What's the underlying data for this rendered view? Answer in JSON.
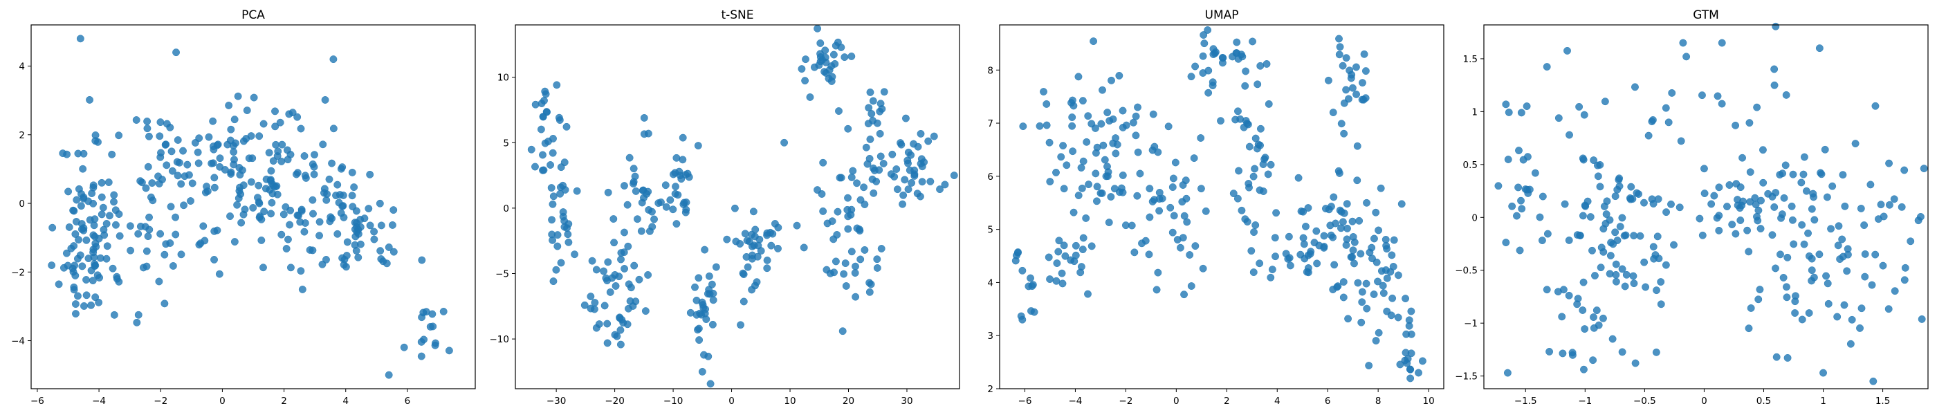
{
  "chart_data": [
    {
      "type": "scatter",
      "title": "PCA",
      "xlim": [
        -6.2,
        8.2
      ],
      "ylim": [
        -5.4,
        5.2
      ],
      "xticks": [
        -6,
        -4,
        -2,
        0,
        2,
        4,
        6
      ],
      "yticks": [
        -4,
        -2,
        0,
        2,
        4
      ],
      "color": "#1f77b4",
      "seed": 11,
      "clusters": [
        {
          "cx": -4.4,
          "cy": -0.8,
          "sx": 0.45,
          "sy": 1.4,
          "n": 90
        },
        {
          "cx": -1.5,
          "cy": 0.9,
          "sx": 0.9,
          "sy": 1.0,
          "n": 60
        },
        {
          "cx": 1.0,
          "cy": 0.9,
          "sx": 1.0,
          "sy": 1.2,
          "n": 90
        },
        {
          "cx": 3.2,
          "cy": 0.2,
          "sx": 0.9,
          "sy": 0.9,
          "n": 70
        },
        {
          "cx": 4.8,
          "cy": -1.2,
          "sx": 0.6,
          "sy": 0.6,
          "n": 30
        },
        {
          "cx": 6.8,
          "cy": -3.8,
          "sx": 0.4,
          "sy": 0.5,
          "n": 14
        },
        {
          "cx": -2.8,
          "cy": -1.2,
          "sx": 1.2,
          "sy": 1.0,
          "n": 30
        }
      ],
      "extra": [
        [
          -4.6,
          4.8
        ],
        [
          5.4,
          -5.0
        ],
        [
          -1.5,
          4.4
        ],
        [
          3.6,
          4.2
        ]
      ]
    },
    {
      "type": "scatter",
      "title": "t-SNE",
      "xlim": [
        -37.0,
        39.0
      ],
      "ylim": [
        -13.8,
        14.0
      ],
      "xticks": [
        -30,
        -20,
        -10,
        0,
        10,
        20,
        30
      ],
      "yticks": [
        -10,
        -5,
        0,
        5,
        10
      ],
      "color": "#1f77b4",
      "seed": 23,
      "clusters": [
        {
          "cx": -31.0,
          "cy": 5.0,
          "sx": 1.2,
          "sy": 2.0,
          "n": 25
        },
        {
          "cx": -29.0,
          "cy": -1.0,
          "sx": 1.4,
          "sy": 1.8,
          "n": 25
        },
        {
          "cx": -21.0,
          "cy": -6.5,
          "sx": 2.5,
          "sy": 2.5,
          "n": 45
        },
        {
          "cx": -16.0,
          "cy": 0.5,
          "sx": 2.0,
          "sy": 2.5,
          "n": 30
        },
        {
          "cx": -9.0,
          "cy": 1.5,
          "sx": 1.5,
          "sy": 2.2,
          "n": 25
        },
        {
          "cx": -4.5,
          "cy": -8.5,
          "sx": 1.0,
          "sy": 2.2,
          "n": 30
        },
        {
          "cx": 3.0,
          "cy": -3.0,
          "sx": 3.0,
          "sy": 2.0,
          "n": 40
        },
        {
          "cx": 16.0,
          "cy": 11.0,
          "sx": 2.0,
          "sy": 1.3,
          "n": 30
        },
        {
          "cx": 20.0,
          "cy": -1.0,
          "sx": 3.0,
          "sy": 3.5,
          "n": 55
        },
        {
          "cx": 31.0,
          "cy": 3.0,
          "sx": 3.0,
          "sy": 1.4,
          "n": 40
        },
        {
          "cx": 24.0,
          "cy": 7.0,
          "sx": 2.0,
          "sy": 1.2,
          "n": 15
        }
      ],
      "extra": [
        [
          -5.0,
          -12.5
        ],
        [
          -32.5,
          8.0
        ],
        [
          9.0,
          5.0
        ]
      ]
    },
    {
      "type": "scatter",
      "title": "UMAP",
      "xlim": [
        -7.0,
        10.6
      ],
      "ylim": [
        2.0,
        8.85
      ],
      "xticks": [
        -6,
        -4,
        -2,
        0,
        2,
        4,
        6,
        8,
        10
      ],
      "yticks": [
        2,
        3,
        4,
        5,
        6,
        7,
        8
      ],
      "color": "#1f77b4",
      "seed": 37,
      "clusters": [
        {
          "cx": -6.0,
          "cy": 3.9,
          "sx": 0.25,
          "sy": 0.35,
          "n": 12
        },
        {
          "cx": -4.2,
          "cy": 4.3,
          "sx": 0.4,
          "sy": 0.3,
          "n": 18
        },
        {
          "cx": -3.0,
          "cy": 6.6,
          "sx": 1.3,
          "sy": 0.8,
          "n": 80
        },
        {
          "cx": -0.5,
          "cy": 5.3,
          "sx": 0.7,
          "sy": 0.8,
          "n": 40
        },
        {
          "cx": 1.5,
          "cy": 8.2,
          "sx": 0.6,
          "sy": 0.3,
          "n": 25
        },
        {
          "cx": 3.0,
          "cy": 6.6,
          "sx": 0.4,
          "sy": 1.1,
          "n": 40
        },
        {
          "cx": 4.5,
          "cy": 4.9,
          "sx": 1.0,
          "sy": 0.5,
          "n": 25
        },
        {
          "cx": 6.8,
          "cy": 5.0,
          "sx": 1.0,
          "sy": 0.6,
          "n": 60
        },
        {
          "cx": 6.8,
          "cy": 7.6,
          "sx": 0.4,
          "sy": 0.5,
          "n": 25
        },
        {
          "cx": 8.2,
          "cy": 3.9,
          "sx": 0.4,
          "sy": 0.5,
          "n": 25
        },
        {
          "cx": 9.3,
          "cy": 2.8,
          "sx": 0.2,
          "sy": 0.3,
          "n": 15
        }
      ],
      "extra": [
        [
          9.6,
          2.3
        ],
        [
          -6.1,
          3.3
        ]
      ]
    },
    {
      "type": "scatter",
      "title": "GTM",
      "xlim": [
        -1.85,
        1.88
      ],
      "ylim": [
        -1.62,
        1.82
      ],
      "xticks": [
        -1.5,
        -1.0,
        -0.5,
        0.0,
        0.5,
        1.0,
        1.5
      ],
      "yticks": [
        -1.5,
        -1.0,
        -0.5,
        0.0,
        0.5,
        1.0,
        1.5
      ],
      "color": "#1f77b4",
      "seed": 51,
      "clusters": [
        {
          "cx": -0.75,
          "cy": -0.1,
          "sx": 0.25,
          "sy": 0.35,
          "n": 70
        },
        {
          "cx": -0.9,
          "cy": -0.9,
          "sx": 0.25,
          "sy": 0.3,
          "n": 30
        },
        {
          "cx": 0.5,
          "cy": 0.1,
          "sx": 0.35,
          "sy": 0.25,
          "n": 70
        },
        {
          "cx": 1.0,
          "cy": -0.8,
          "sx": 0.35,
          "sy": 0.35,
          "n": 45
        },
        {
          "cx": -1.5,
          "cy": 0.2,
          "sx": 0.15,
          "sy": 0.4,
          "n": 25
        },
        {
          "cx": 1.5,
          "cy": 0.0,
          "sx": 0.2,
          "sy": 0.4,
          "n": 25
        },
        {
          "cx": 0.0,
          "cy": 1.1,
          "sx": 0.7,
          "sy": 0.3,
          "n": 30
        }
      ],
      "extra": [
        [
          1.0,
          -1.47
        ],
        [
          -1.65,
          -1.47
        ],
        [
          0.97,
          1.6
        ],
        [
          1.42,
          -1.55
        ],
        [
          0.15,
          1.65
        ],
        [
          -0.15,
          1.52
        ]
      ]
    }
  ]
}
